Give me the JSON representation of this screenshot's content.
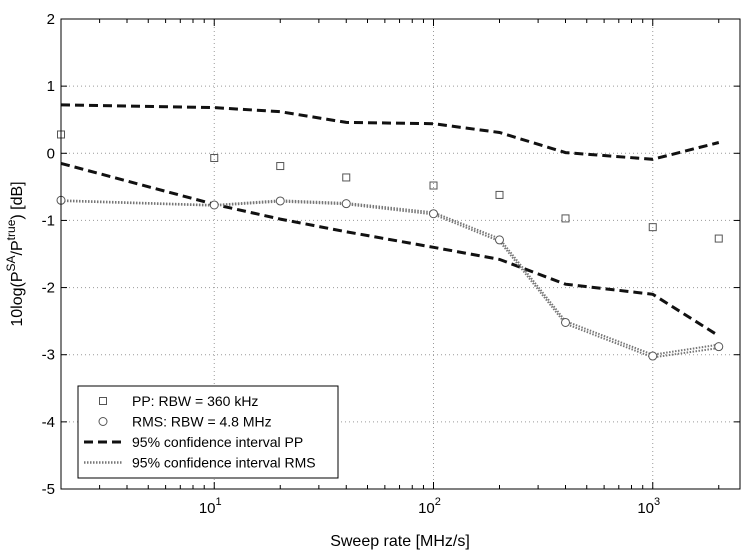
{
  "chart_data": {
    "type": "line",
    "title": "",
    "xlabel": "Sweep rate [MHz/s]",
    "ylabel": "10log(P^SA/P^true) [dB]",
    "ylabel_parts": {
      "prefix": "10log(P",
      "sup1": "SA",
      "mid": "/P",
      "sup2": "true",
      "suffix": ") [dB]"
    },
    "xscale": "log",
    "xlim": [
      2,
      2500
    ],
    "ylim": [
      -5,
      2
    ],
    "grid": true,
    "legend_position": "lower-left",
    "x_ticks": [
      {
        "value": 10,
        "base": "10",
        "exp": "1"
      },
      {
        "value": 100,
        "base": "10",
        "exp": "2"
      },
      {
        "value": 1000,
        "base": "10",
        "exp": "3"
      }
    ],
    "y_ticks": [
      2,
      1,
      0,
      -1,
      -2,
      -3,
      -4,
      -5
    ],
    "series": [
      {
        "name": "PP: RBW = 360 kHz",
        "style": "square-markers",
        "color": "#555555",
        "x": [
          2,
          10,
          20,
          40,
          100,
          200,
          400,
          1000,
          2000
        ],
        "y": [
          0.28,
          -0.07,
          -0.19,
          -0.36,
          -0.48,
          -0.62,
          -0.97,
          -1.1,
          -1.27
        ]
      },
      {
        "name": "RMS: RBW = 4.8 MHz",
        "style": "circle-markers",
        "color": "#555555",
        "x": [
          2,
          10,
          20,
          40,
          100,
          200,
          400,
          1000,
          2000
        ],
        "y": [
          -0.7,
          -0.77,
          -0.71,
          -0.75,
          -0.9,
          -1.29,
          -2.52,
          -3.02,
          -2.88
        ]
      },
      {
        "name": "95% confidence interval PP",
        "style": "dashed",
        "color": "#111111",
        "segments": [
          {
            "x": [
              2,
              10,
              20,
              40,
              100,
              200,
              400,
              1000,
              2000
            ],
            "y": [
              0.72,
              0.68,
              0.62,
              0.46,
              0.44,
              0.31,
              0.01,
              -0.09,
              0.16
            ]
          },
          {
            "x": [
              2,
              10,
              20,
              40,
              100,
              200,
              400,
              1000,
              2000
            ],
            "y": [
              -0.15,
              -0.76,
              -0.98,
              -1.17,
              -1.4,
              -1.58,
              -1.95,
              -2.1,
              -2.72
            ]
          }
        ]
      },
      {
        "name": "95% confidence interval RMS",
        "style": "dotted",
        "color": "#777777",
        "segments": [
          {
            "x": [
              2,
              10,
              20,
              40,
              100,
              200,
              400,
              1000,
              2000
            ],
            "y": [
              -0.7,
              -0.77,
              -0.7,
              -0.74,
              -0.88,
              -1.27,
              -2.5,
              -3.0,
              -2.85
            ]
          },
          {
            "x": [
              2,
              10,
              20,
              40,
              100,
              200,
              400,
              1000,
              2000
            ],
            "y": [
              -0.71,
              -0.78,
              -0.72,
              -0.76,
              -0.91,
              -1.31,
              -2.54,
              -3.04,
              -2.9
            ]
          }
        ]
      }
    ]
  }
}
